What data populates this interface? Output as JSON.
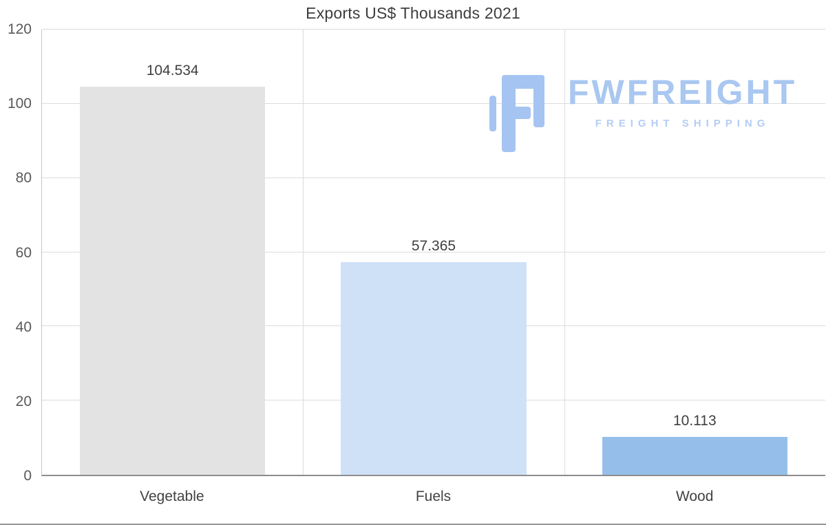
{
  "chart_data": {
    "type": "bar",
    "title": "Exports US$ Thousands 2021",
    "categories": [
      "Vegetable",
      "Fuels",
      "Wood"
    ],
    "values": [
      104.534,
      57.365,
      10.113
    ],
    "value_labels": [
      "104.534",
      "57.365",
      "10.113"
    ],
    "bar_colors": [
      "#e3e3e3",
      "#cfe1f7",
      "#95bfea"
    ],
    "ylim": [
      0,
      120
    ],
    "yticks": [
      0,
      20,
      40,
      60,
      80,
      100,
      120
    ],
    "xlabel": "",
    "ylabel": "",
    "grid": true,
    "legend": "none"
  },
  "watermark": {
    "brand": "FWFREIGHT",
    "tagline": "FREIGHT SHIPPING",
    "color": "#a9c7f0"
  }
}
